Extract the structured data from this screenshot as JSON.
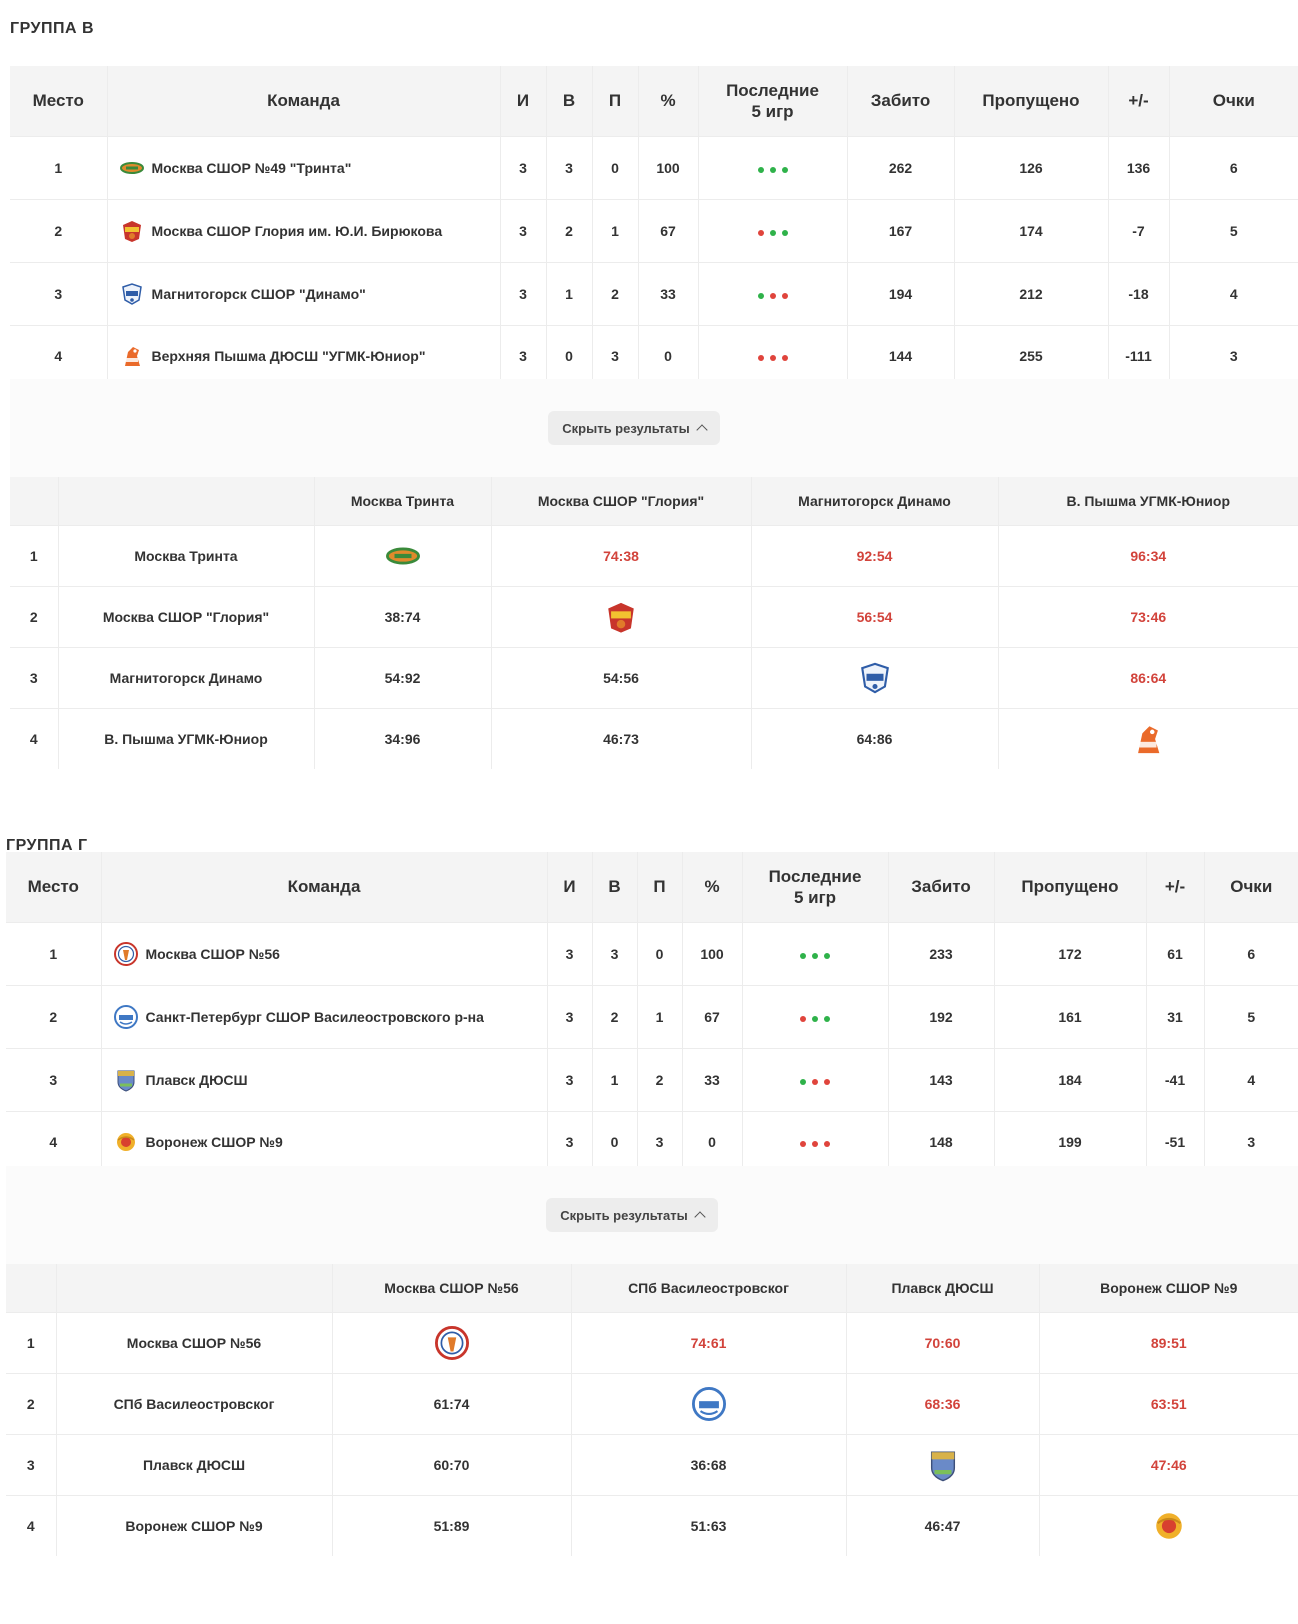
{
  "headers": {
    "place": "Место",
    "team": "Команда",
    "games": "И",
    "wins": "В",
    "losses": "П",
    "percent": "%",
    "last5_line1": "Последние",
    "last5_line2": "5 игр",
    "scored": "Забито",
    "conceded": "Пропущено",
    "diff": "+/-",
    "points": "Очки"
  },
  "groups": [
    {
      "title": "ГРУППА В",
      "toggle_label": "Скрыть результаты",
      "standings": [
        {
          "place": "1",
          "team": "Москва СШОР №49 \"Тринта\"",
          "logo": "trinta-logo",
          "g": "3",
          "w": "3",
          "l": "0",
          "pct": "100",
          "form": [
            "w",
            "w",
            "w"
          ],
          "scored": "262",
          "conceded": "126",
          "diff": "136",
          "pts": "6"
        },
        {
          "place": "2",
          "team": "Москва СШОР Глория им. Ю.И. Бирюкова",
          "logo": "gloria-logo",
          "g": "3",
          "w": "2",
          "l": "1",
          "pct": "67",
          "form": [
            "l",
            "w",
            "w"
          ],
          "scored": "167",
          "conceded": "174",
          "diff": "-7",
          "pts": "5"
        },
        {
          "place": "3",
          "team": "Магнитогорск СШОР \"Динамо\"",
          "logo": "dinamo-logo",
          "g": "3",
          "w": "1",
          "l": "2",
          "pct": "33",
          "form": [
            "w",
            "l",
            "l"
          ],
          "scored": "194",
          "conceded": "212",
          "diff": "-18",
          "pts": "4"
        },
        {
          "place": "4",
          "team": "Верхняя Пышма ДЮСШ \"УГМК-Юниор\"",
          "logo": "ugmk-logo",
          "g": "3",
          "w": "0",
          "l": "3",
          "pct": "0",
          "form": [
            "l",
            "l",
            "l"
          ],
          "scored": "144",
          "conceded": "255",
          "diff": "-111",
          "pts": "3"
        }
      ],
      "columns": [
        "Москва Тринта",
        "Москва СШОР \"Глория\"",
        "Магнитогорск Динамо",
        "В. Пышма УГМК-Юниор"
      ],
      "results": [
        {
          "idx": "1",
          "name": "Москва Тринта",
          "cells": [
            "",
            "74:38",
            "92:54",
            "96:34"
          ]
        },
        {
          "idx": "2",
          "name": "Москва СШОР \"Глория\"",
          "cells": [
            "38:74",
            "",
            "56:54",
            "73:46"
          ]
        },
        {
          "idx": "3",
          "name": "Магнитогорск Динамо",
          "cells": [
            "54:92",
            "54:56",
            "",
            "86:64"
          ]
        },
        {
          "idx": "4",
          "name": "В. Пышма УГМК-Юниор",
          "cells": [
            "34:96",
            "46:73",
            "64:86",
            ""
          ]
        }
      ]
    },
    {
      "title": "ГРУППА Г",
      "toggle_label": "Скрыть результаты",
      "standings": [
        {
          "place": "1",
          "team": "Москва СШОР №56",
          "logo": "sshor56-logo",
          "g": "3",
          "w": "3",
          "l": "0",
          "pct": "100",
          "form": [
            "w",
            "w",
            "w"
          ],
          "scored": "233",
          "conceded": "172",
          "diff": "61",
          "pts": "6"
        },
        {
          "place": "2",
          "team": "Санкт-Петербург СШОР Василеостровского р-на",
          "logo": "spb-logo",
          "g": "3",
          "w": "2",
          "l": "1",
          "pct": "67",
          "form": [
            "l",
            "w",
            "w"
          ],
          "scored": "192",
          "conceded": "161",
          "diff": "31",
          "pts": "5"
        },
        {
          "place": "3",
          "team": "Плавск ДЮСШ",
          "logo": "plavsk-logo",
          "g": "3",
          "w": "1",
          "l": "2",
          "pct": "33",
          "form": [
            "w",
            "l",
            "l"
          ],
          "scored": "143",
          "conceded": "184",
          "diff": "-41",
          "pts": "4"
        },
        {
          "place": "4",
          "team": "Воронеж СШОР №9",
          "logo": "voronezh-logo",
          "g": "3",
          "w": "0",
          "l": "3",
          "pct": "0",
          "form": [
            "l",
            "l",
            "l"
          ],
          "scored": "148",
          "conceded": "199",
          "diff": "-51",
          "pts": "3"
        }
      ],
      "columns": [
        "Москва СШОР №56",
        "СПб Василеостровског",
        "Плавск ДЮСШ",
        "Воронеж СШОР №9"
      ],
      "results": [
        {
          "idx": "1",
          "name": "Москва СШОР №56",
          "cells": [
            "",
            "74:61",
            "70:60",
            "89:51"
          ]
        },
        {
          "idx": "2",
          "name": "СПб Василеостровског",
          "cells": [
            "61:74",
            "",
            "68:36",
            "63:51"
          ]
        },
        {
          "idx": "3",
          "name": "Плавск ДЮСШ",
          "cells": [
            "60:70",
            "36:68",
            "",
            "47:46"
          ]
        },
        {
          "idx": "4",
          "name": "Воронеж СШОР №9",
          "cells": [
            "51:89",
            "51:63",
            "46:47",
            ""
          ]
        }
      ]
    }
  ]
}
